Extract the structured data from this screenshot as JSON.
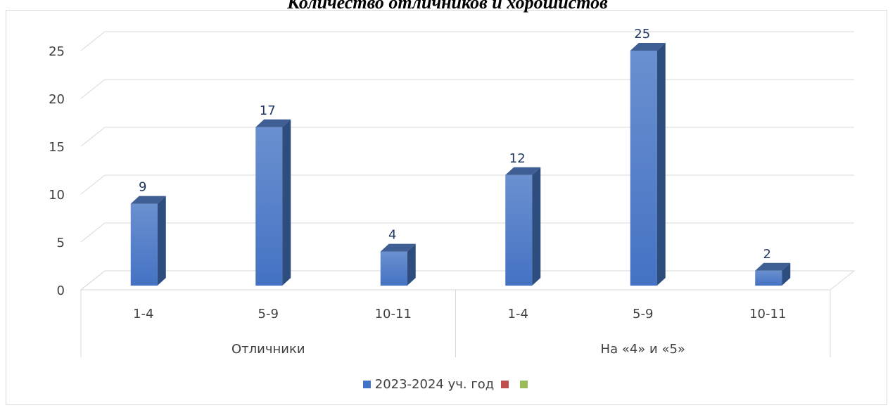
{
  "chart_data": {
    "type": "bar",
    "title": "Количество отличников и хорошистов",
    "groups": [
      {
        "label": "Отличники",
        "categories": [
          "1-4",
          "5-9",
          "10-11"
        ]
      },
      {
        "label": "На «4» и «5»",
        "categories": [
          "1-4",
          "5-9",
          "10-11"
        ]
      }
    ],
    "series": [
      {
        "name": "2023-2024 уч. год",
        "color": "#4472c4",
        "values": [
          9,
          17,
          4,
          12,
          25,
          2
        ]
      },
      {
        "name": "",
        "color": "#c0504d",
        "values": []
      },
      {
        "name": "",
        "color": "#9bbb59",
        "values": []
      }
    ],
    "ylim": [
      0,
      25
    ],
    "yticks": [
      0,
      5,
      10,
      15,
      20,
      25
    ],
    "grid": true,
    "legend": "bottom",
    "data_labels": true,
    "style": "3d-column"
  }
}
